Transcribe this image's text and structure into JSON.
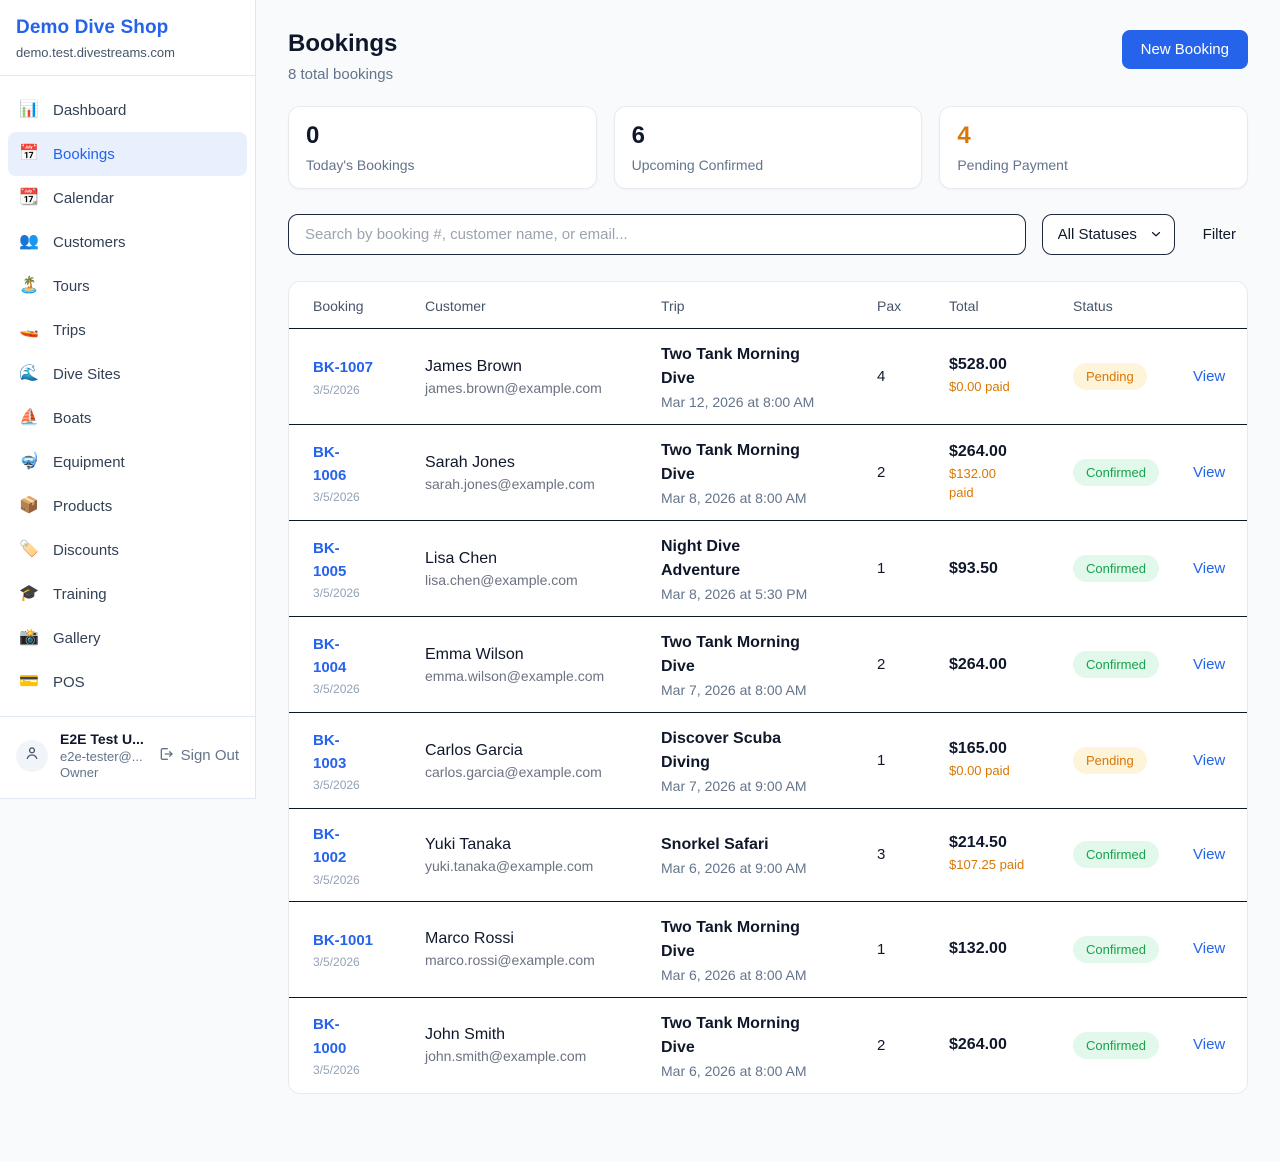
{
  "sidebar": {
    "brand": "Demo Dive Shop",
    "domain": "demo.test.divestreams.com",
    "items": [
      {
        "key": "dashboard",
        "icon": "📊",
        "icon_name": "bar-chart-icon",
        "label": "Dashboard",
        "active": false
      },
      {
        "key": "bookings",
        "icon": "📅",
        "icon_name": "calendar-icon",
        "label": "Bookings",
        "active": true
      },
      {
        "key": "calendar",
        "icon": "📆",
        "icon_name": "tear-off-calendar-icon",
        "label": "Calendar",
        "active": false
      },
      {
        "key": "customers",
        "icon": "👥",
        "icon_name": "people-icon",
        "label": "Customers",
        "active": false
      },
      {
        "key": "tours",
        "icon": "🏝️",
        "icon_name": "island-icon",
        "label": "Tours",
        "active": false
      },
      {
        "key": "trips",
        "icon": "🚤",
        "icon_name": "speedboat-icon",
        "label": "Trips",
        "active": false
      },
      {
        "key": "dive-sites",
        "icon": "🌊",
        "icon_name": "wave-icon",
        "label": "Dive Sites",
        "active": false
      },
      {
        "key": "boats",
        "icon": "⛵",
        "icon_name": "sailboat-icon",
        "label": "Boats",
        "active": false
      },
      {
        "key": "equipment",
        "icon": "🤿",
        "icon_name": "diving-mask-icon",
        "label": "Equipment",
        "active": false
      },
      {
        "key": "products",
        "icon": "📦",
        "icon_name": "package-icon",
        "label": "Products",
        "active": false
      },
      {
        "key": "discounts",
        "icon": "🏷️",
        "icon_name": "tag-icon",
        "label": "Discounts",
        "active": false
      },
      {
        "key": "training",
        "icon": "🎓",
        "icon_name": "graduation-cap-icon",
        "label": "Training",
        "active": false
      },
      {
        "key": "gallery",
        "icon": "📸",
        "icon_name": "camera-icon",
        "label": "Gallery",
        "active": false
      },
      {
        "key": "pos",
        "icon": "💳",
        "icon_name": "credit-card-icon",
        "label": "POS",
        "active": false
      }
    ],
    "user": {
      "name": "E2E Test U...",
      "email": "e2e-tester@...",
      "role": "Owner",
      "sign_out_label": "Sign Out"
    }
  },
  "header": {
    "title": "Bookings",
    "subtitle": "8 total bookings",
    "new_booking_label": "New Booking"
  },
  "stats": [
    {
      "value": "0",
      "label": "Today's Bookings",
      "value_color": "#0f172a"
    },
    {
      "value": "6",
      "label": "Upcoming Confirmed",
      "value_color": "#0f172a"
    },
    {
      "value": "4",
      "label": "Pending Payment",
      "value_color": "#d97706"
    }
  ],
  "filters": {
    "search_placeholder": "Search by booking #, customer name, or email...",
    "status_selected": "All Statuses",
    "filter_button_label": "Filter"
  },
  "table": {
    "columns": [
      "Booking",
      "Customer",
      "Trip",
      "Pax",
      "Total",
      "Status"
    ],
    "rows": [
      {
        "id": "BK-1007",
        "id_wrap": false,
        "date": "3/5/2026",
        "customer_name": "James Brown",
        "customer_email": "james.brown@example.com",
        "trip_name": "Two Tank Morning Dive",
        "trip_datetime": "Mar 12, 2026 at 8:00 AM",
        "pax": "4",
        "total": "$528.00",
        "paid": "$0.00 paid",
        "paid_wrap": false,
        "status": "Pending",
        "view_label": "View"
      },
      {
        "id": "BK-1006",
        "id_wrap": true,
        "date": "3/5/2026",
        "customer_name": "Sarah Jones",
        "customer_email": "sarah.jones@example.com",
        "trip_name": "Two Tank Morning Dive",
        "trip_datetime": "Mar 8, 2026 at 8:00 AM",
        "pax": "2",
        "total": "$264.00",
        "paid": "$132.00 paid",
        "paid_wrap": true,
        "status": "Confirmed",
        "view_label": "View"
      },
      {
        "id": "BK-1005",
        "id_wrap": true,
        "date": "3/5/2026",
        "customer_name": "Lisa Chen",
        "customer_email": "lisa.chen@example.com",
        "trip_name": "Night Dive Adventure",
        "trip_datetime": "Mar 8, 2026 at 5:30 PM",
        "pax": "1",
        "total": "$93.50",
        "paid": "",
        "paid_wrap": false,
        "status": "Confirmed",
        "view_label": "View"
      },
      {
        "id": "BK-1004",
        "id_wrap": true,
        "date": "3/5/2026",
        "customer_name": "Emma Wilson",
        "customer_email": "emma.wilson@example.com",
        "trip_name": "Two Tank Morning Dive",
        "trip_datetime": "Mar 7, 2026 at 8:00 AM",
        "pax": "2",
        "total": "$264.00",
        "paid": "",
        "paid_wrap": false,
        "status": "Confirmed",
        "view_label": "View"
      },
      {
        "id": "BK-1003",
        "id_wrap": true,
        "date": "3/5/2026",
        "customer_name": "Carlos Garcia",
        "customer_email": "carlos.garcia@example.com",
        "trip_name": "Discover Scuba Diving",
        "trip_datetime": "Mar 7, 2026 at 9:00 AM",
        "pax": "1",
        "total": "$165.00",
        "paid": "$0.00 paid",
        "paid_wrap": false,
        "status": "Pending",
        "view_label": "View"
      },
      {
        "id": "BK-1002",
        "id_wrap": true,
        "date": "3/5/2026",
        "customer_name": "Yuki Tanaka",
        "customer_email": "yuki.tanaka@example.com",
        "trip_name": "Snorkel Safari",
        "trip_datetime": "Mar 6, 2026 at 9:00 AM",
        "pax": "3",
        "total": "$214.50",
        "paid": "$107.25 paid",
        "paid_wrap": false,
        "status": "Confirmed",
        "view_label": "View"
      },
      {
        "id": "BK-1001",
        "id_wrap": false,
        "date": "3/5/2026",
        "customer_name": "Marco Rossi",
        "customer_email": "marco.rossi@example.com",
        "trip_name": "Two Tank Morning Dive",
        "trip_datetime": "Mar 6, 2026 at 8:00 AM",
        "pax": "1",
        "total": "$132.00",
        "paid": "",
        "paid_wrap": false,
        "status": "Confirmed",
        "view_label": "View"
      },
      {
        "id": "BK-1000",
        "id_wrap": true,
        "date": "3/5/2026",
        "customer_name": "John Smith",
        "customer_email": "john.smith@example.com",
        "trip_name": "Two Tank Morning Dive",
        "trip_datetime": "Mar 6, 2026 at 8:00 AM",
        "pax": "2",
        "total": "$264.00",
        "paid": "",
        "paid_wrap": false,
        "status": "Confirmed",
        "view_label": "View"
      }
    ]
  },
  "colors": {
    "accent_blue": "#2563eb",
    "pending_text": "#d97706",
    "pending_bg": "#fdf4da",
    "confirmed_text": "#16a34a",
    "confirmed_bg": "#e2f8eb",
    "dark_separator": "#0f172a",
    "page_bg": "#f8fafc"
  }
}
